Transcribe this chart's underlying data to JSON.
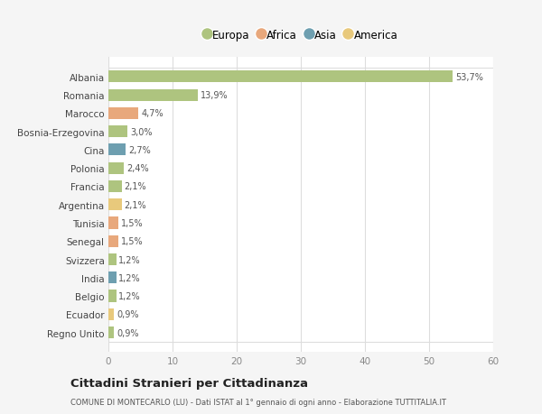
{
  "countries": [
    "Albania",
    "Romania",
    "Marocco",
    "Bosnia-Erzegovina",
    "Cina",
    "Polonia",
    "Francia",
    "Argentina",
    "Tunisia",
    "Senegal",
    "Svizzera",
    "India",
    "Belgio",
    "Ecuador",
    "Regno Unito"
  ],
  "values": [
    53.7,
    13.9,
    4.7,
    3.0,
    2.7,
    2.4,
    2.1,
    2.1,
    1.5,
    1.5,
    1.2,
    1.2,
    1.2,
    0.9,
    0.9
  ],
  "labels": [
    "53,7%",
    "13,9%",
    "4,7%",
    "3,0%",
    "2,7%",
    "2,4%",
    "2,1%",
    "2,1%",
    "1,5%",
    "1,5%",
    "1,2%",
    "1,2%",
    "1,2%",
    "0,9%",
    "0,9%"
  ],
  "colors": [
    "#aec47f",
    "#aec47f",
    "#e8a87c",
    "#aec47f",
    "#6e9fb0",
    "#aec47f",
    "#aec47f",
    "#e8c97c",
    "#e8a87c",
    "#e8a87c",
    "#aec47f",
    "#6e9fb0",
    "#aec47f",
    "#e8c97c",
    "#aec47f"
  ],
  "legend_labels": [
    "Europa",
    "Africa",
    "Asia",
    "America"
  ],
  "legend_colors": [
    "#aec47f",
    "#e8a87c",
    "#6e9fb0",
    "#e8c97c"
  ],
  "title": "Cittadini Stranieri per Cittadinanza",
  "subtitle": "COMUNE DI MONTECARLO (LU) - Dati ISTAT al 1° gennaio di ogni anno - Elaborazione TUTTITALIA.IT",
  "xlim": [
    0,
    60
  ],
  "xticks": [
    0,
    10,
    20,
    30,
    40,
    50,
    60
  ],
  "bg_color": "#f5f5f5",
  "bar_bg_color": "#ffffff",
  "grid_color": "#dddddd"
}
